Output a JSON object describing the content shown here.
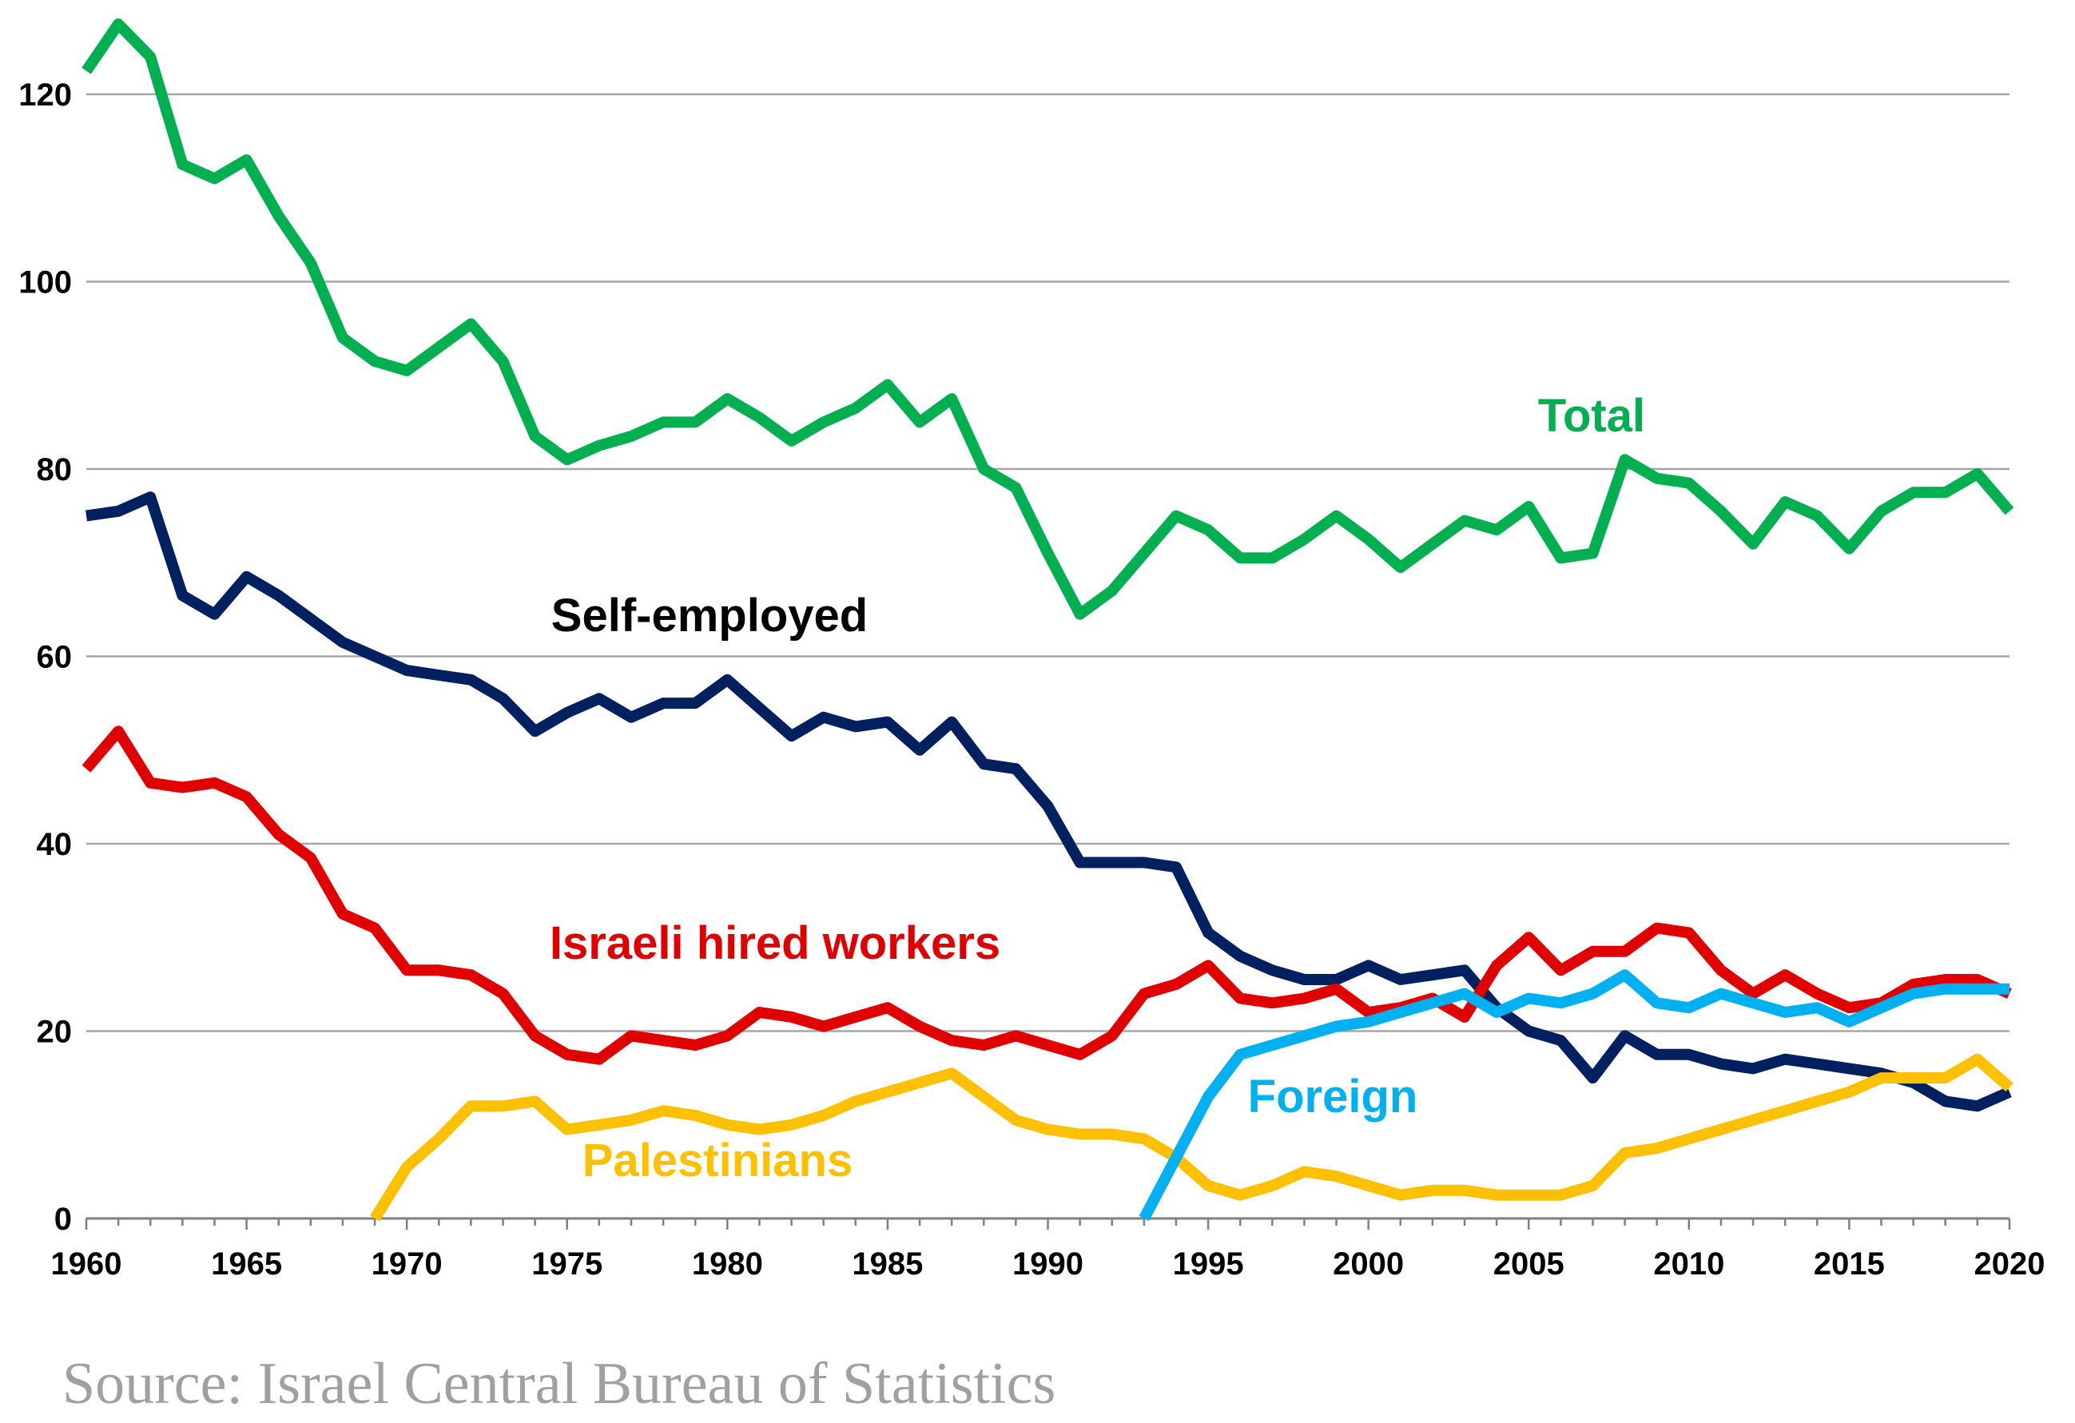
{
  "chart_data": {
    "type": "line",
    "title": "",
    "xlabel": "",
    "ylabel": "",
    "xlim": [
      1960,
      2020
    ],
    "ylim": [
      0,
      125
    ],
    "grid": true,
    "y_ticks": [
      "0",
      "20",
      "40",
      "60",
      "80",
      "100",
      "120"
    ],
    "y_tick_values": [
      0,
      20,
      40,
      60,
      80,
      100,
      120
    ],
    "x_ticks": [
      "1960",
      "1965",
      "1970",
      "1975",
      "1980",
      "1985",
      "1990",
      "1995",
      "2000",
      "2005",
      "2010",
      "2015",
      "2020"
    ],
    "x_tick_values": [
      1960,
      1965,
      1970,
      1975,
      1980,
      1985,
      1990,
      1995,
      2000,
      2005,
      2010,
      2015,
      2020
    ],
    "series": [
      {
        "name": "Total",
        "color": "#00b050",
        "start_year": 1960,
        "values": [
          122.5,
          127.5,
          124,
          112.5,
          111,
          113,
          107,
          102,
          94,
          91.5,
          90.5,
          93,
          95.5,
          91.5,
          83.5,
          81,
          82.5,
          83.5,
          85,
          85,
          87.5,
          85.5,
          83,
          85,
          86.5,
          89,
          85,
          87.5,
          80,
          78,
          71,
          64.5,
          67,
          71,
          75,
          73.5,
          70.5,
          70.5,
          72.5,
          75,
          72.5,
          69.5,
          72,
          74.5,
          73.5,
          76,
          70.5,
          71,
          81,
          79,
          78.5,
          75.5,
          72,
          76.5,
          75,
          71.5,
          75.5,
          77.5,
          77.5,
          79.5,
          75.5
        ]
      },
      {
        "name": "Self-employed",
        "color": "#002060",
        "start_year": 1960,
        "values": [
          75,
          75.5,
          77,
          66.5,
          64.5,
          68.5,
          66.5,
          64,
          61.5,
          60,
          58.5,
          58,
          57.5,
          55.5,
          52,
          54,
          55.5,
          53.5,
          55,
          55,
          57.5,
          54.5,
          51.5,
          53.5,
          52.5,
          53,
          50,
          53,
          48.5,
          48,
          44,
          38,
          38,
          38,
          37.5,
          30.5,
          28,
          26.5,
          25.5,
          25.5,
          27,
          25.5,
          26,
          26.5,
          22.5,
          20,
          19,
          15,
          19.5,
          17.5,
          17.5,
          16.5,
          16,
          17,
          16.5,
          16,
          15.5,
          14.5,
          12.5,
          12,
          13.5
        ]
      },
      {
        "name": "Israeli hired workers",
        "color": "#e00000",
        "start_year": 1960,
        "values": [
          48,
          52,
          46.5,
          46,
          46.5,
          45,
          41,
          38.5,
          32.5,
          31,
          26.5,
          26.5,
          26,
          24,
          19.5,
          17.5,
          17,
          19.5,
          19,
          18.5,
          19.5,
          22,
          21.5,
          20.5,
          21.5,
          22.5,
          20.5,
          19,
          18.5,
          19.5,
          18.5,
          17.5,
          19.5,
          24,
          25,
          27,
          23.5,
          23,
          23.5,
          24.5,
          22,
          22.5,
          23.5,
          21.5,
          27,
          30,
          26.5,
          28.5,
          28.5,
          31,
          30.5,
          26.5,
          24,
          26,
          24,
          22.5,
          23,
          25,
          25.5,
          25.5,
          24
        ]
      },
      {
        "name": "Palestinians",
        "color": "#ffc000",
        "start_year": 1969,
        "values": [
          0,
          5.5,
          8.5,
          12,
          12,
          12.5,
          9.5,
          10,
          10.5,
          11.5,
          11,
          10,
          9.5,
          10,
          11,
          12.5,
          13.5,
          14.5,
          15.5,
          13,
          10.5,
          9.5,
          9,
          9,
          8.5,
          6.5,
          3.5,
          2.5,
          3.5,
          5,
          4.5,
          3.5,
          2.5,
          3,
          3,
          2.5,
          2.5,
          2.5,
          3.5,
          7,
          7.5,
          8.5,
          9.5,
          10.5,
          11.5,
          12.5,
          13.5,
          15,
          15,
          15,
          17,
          14
        ]
      },
      {
        "name": "Foreign",
        "color": "#00b0f0",
        "start_year": 1993,
        "values": [
          0,
          6.5,
          13,
          17.5,
          18.5,
          19.5,
          20.5,
          21,
          22,
          23,
          24,
          22,
          23.5,
          23,
          24,
          26,
          23,
          22.5,
          24,
          23,
          22,
          22.5,
          21,
          22.5,
          24,
          24.5,
          24.5,
          24.5
        ]
      }
    ],
    "annotations": [
      {
        "text": "Total",
        "series": "Total"
      },
      {
        "text": "Self-employed",
        "series": "Self-employed"
      },
      {
        "text": "Israeli hired workers",
        "series": "Israeli hired workers"
      },
      {
        "text": "Palestinians",
        "series": "Palestinians"
      },
      {
        "text": "Foreign",
        "series": "Foreign"
      }
    ]
  },
  "source_note": "Source: Israel Central Bureau of Statistics"
}
